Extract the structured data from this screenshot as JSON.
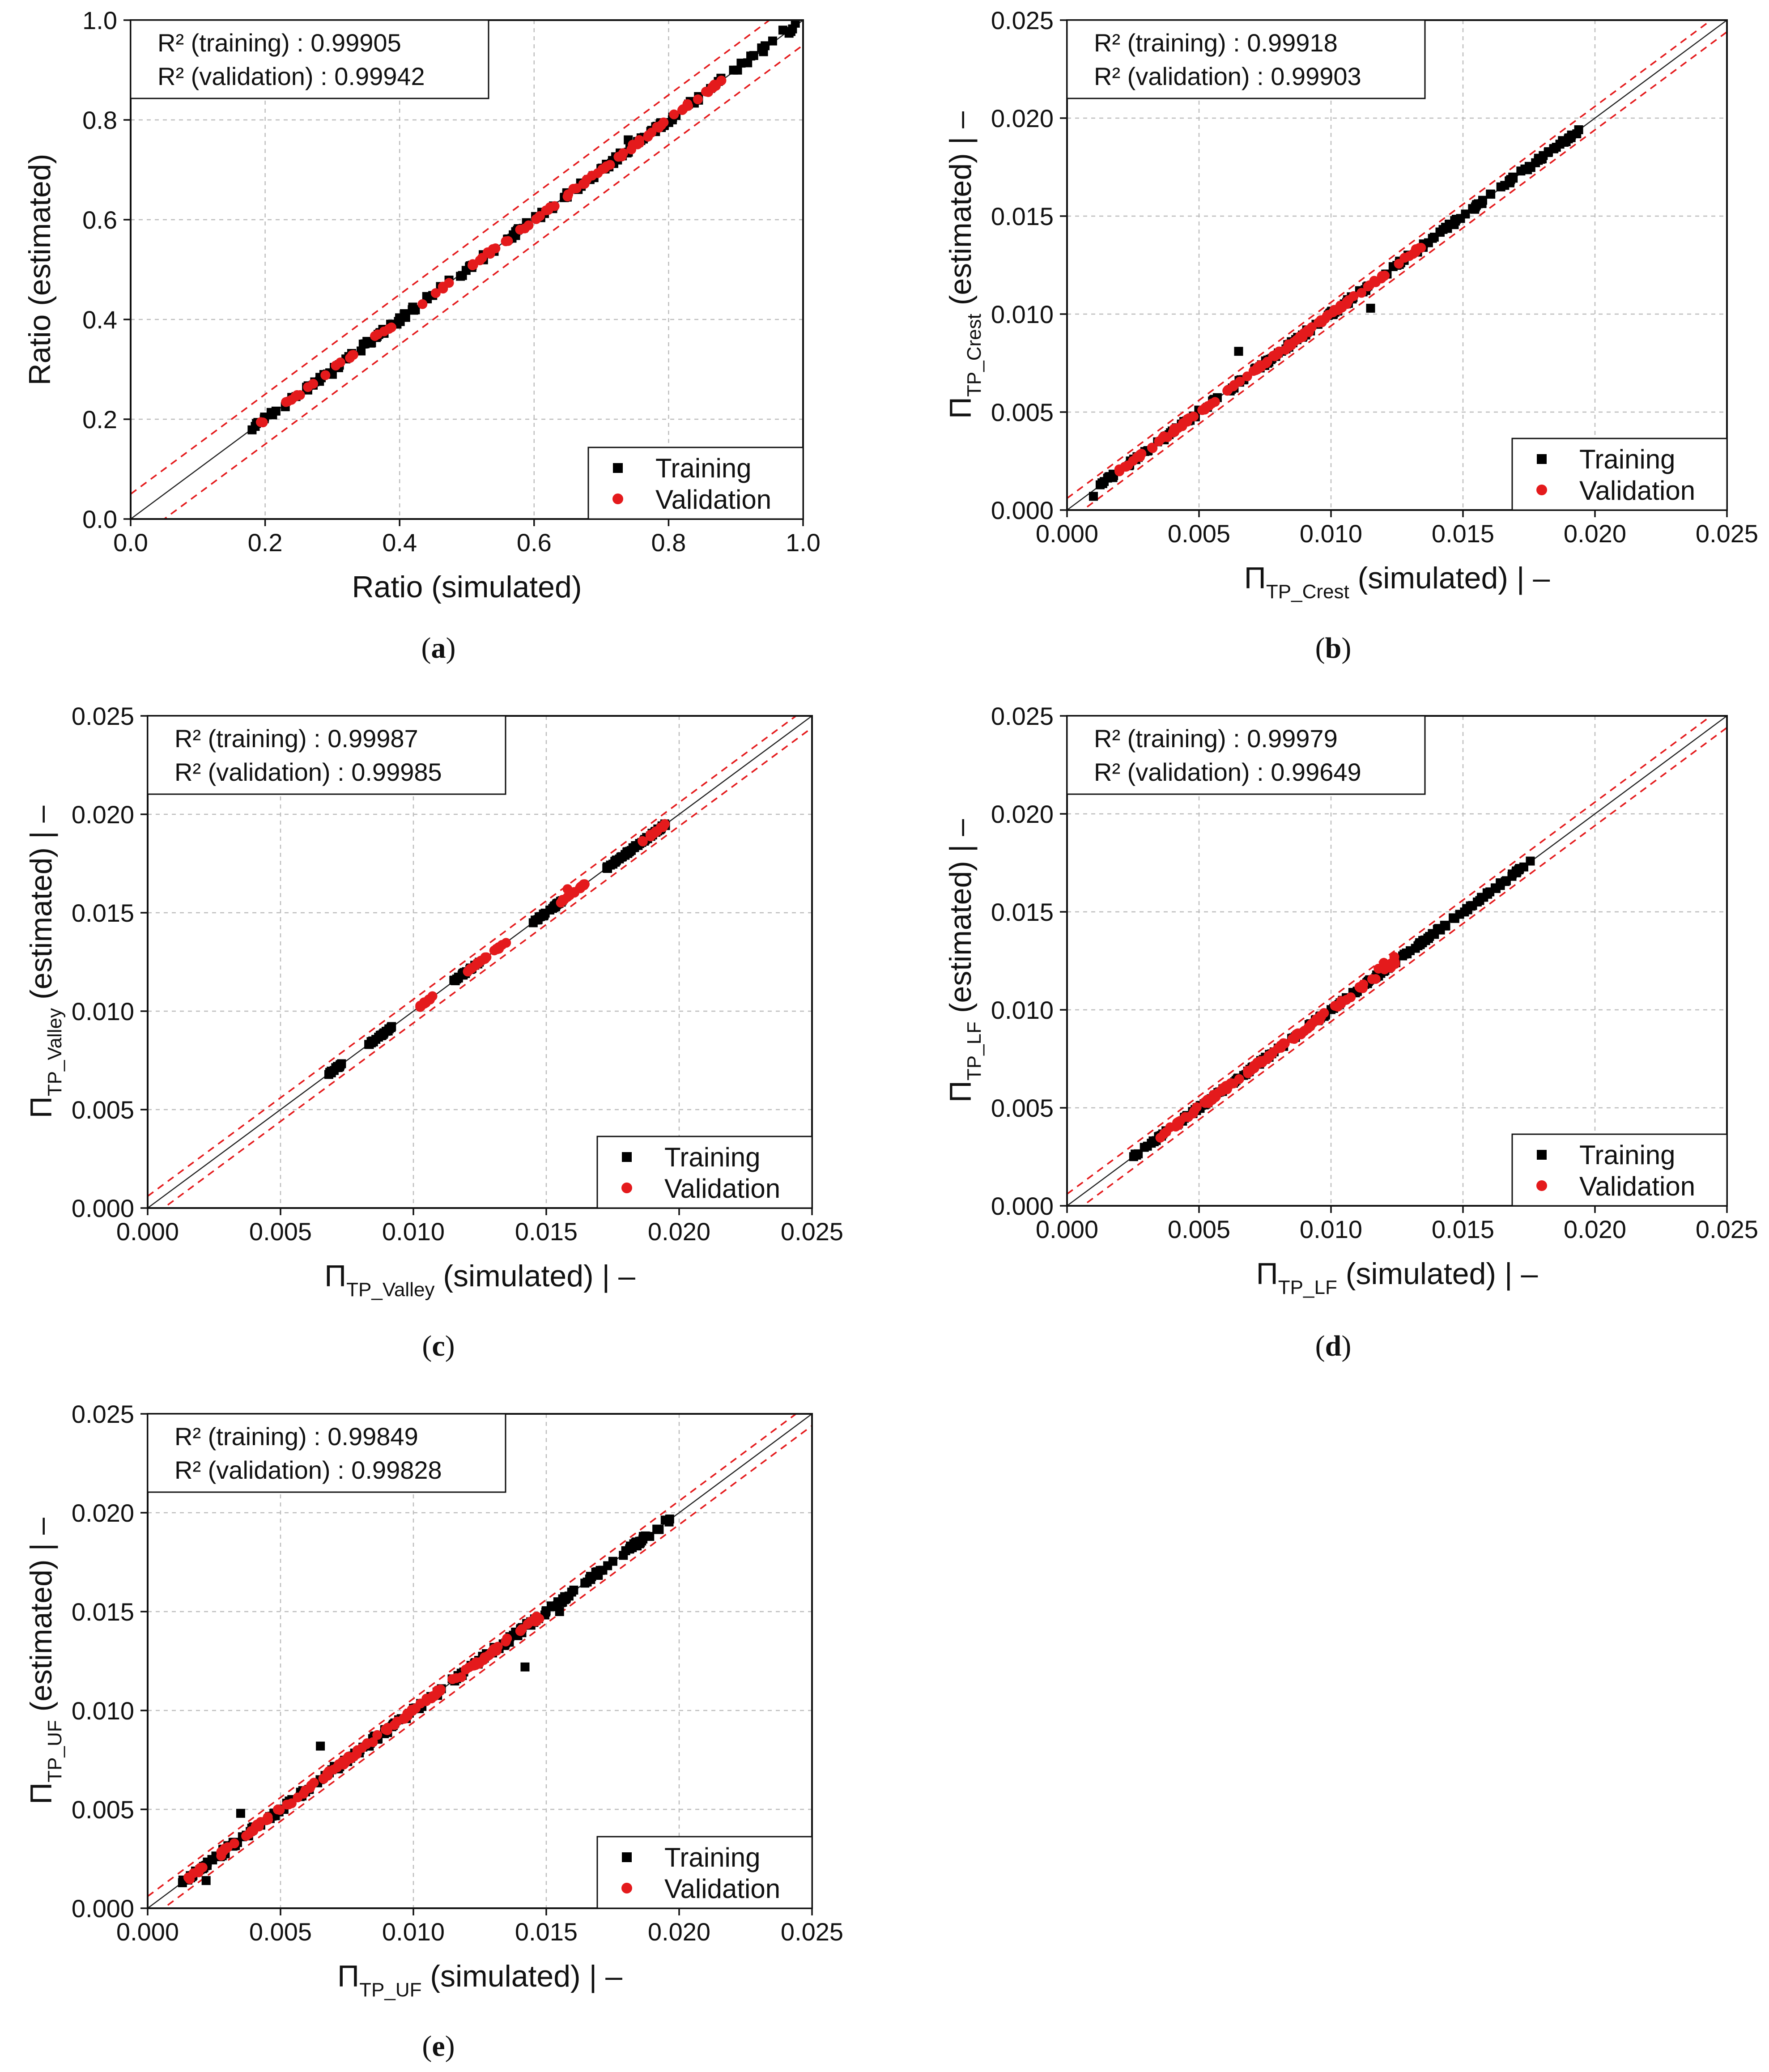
{
  "figure": {
    "legend": {
      "training_label": "Training",
      "validation_label": "Validation"
    },
    "colors": {
      "training": "#000000",
      "validation": "#e41a1c",
      "identity": "#222222",
      "band": "#e41a1c"
    }
  },
  "chart_data": [
    {
      "id": "a",
      "type": "scatter",
      "caption": {
        "open": "(",
        "letter": "a",
        "close": ")"
      },
      "xlabel": {
        "main": "Ratio (simulated)",
        "sub": "",
        "suffix": ""
      },
      "ylabel": {
        "main": "Ratio (estimated)",
        "sub": "",
        "suffix": ""
      },
      "xlim": [
        0,
        1.0
      ],
      "ylim": [
        0,
        1.0
      ],
      "xticks": [
        "0.0",
        "0.2",
        "0.4",
        "0.6",
        "0.8",
        "1.0"
      ],
      "yticks": [
        "0.0",
        "0.2",
        "0.4",
        "0.6",
        "0.8",
        "1.0"
      ],
      "stats": [
        "R² (training) : 0.99905",
        "R² (validation) : 0.99942"
      ],
      "band": 0.05,
      "series": [
        {
          "name": "Training",
          "noise": 0.006,
          "outliers": [
            [
              0.3,
              0.29
            ],
            [
              0.74,
              0.76
            ],
            [
              0.97,
              0.98
            ]
          ],
          "ranges": [
            [
              0.17,
              0.99
            ]
          ],
          "count": 170
        },
        {
          "name": "Validation",
          "noise": 0.004,
          "outliers": [],
          "ranges": [
            [
              0.19,
              0.88
            ]
          ],
          "count": 90
        }
      ]
    },
    {
      "id": "b",
      "type": "scatter",
      "caption": {
        "open": "(",
        "letter": "b",
        "close": ")"
      },
      "xlabel": {
        "main": "Π",
        "sub": "TP_Crest",
        "suffix": " (simulated) | –"
      },
      "ylabel": {
        "main": "Π",
        "sub": "TP_Crest",
        "suffix": " (estimated) | –"
      },
      "xlim": [
        0,
        0.025
      ],
      "ylim": [
        0,
        0.025
      ],
      "xticks": [
        "0.000",
        "0.005",
        "0.010",
        "0.015",
        "0.020",
        "0.025"
      ],
      "yticks": [
        "0.000",
        "0.005",
        "0.010",
        "0.015",
        "0.020",
        "0.025"
      ],
      "stats": [
        "R² (training) : 0.99918",
        "R² (validation) : 0.99903"
      ],
      "band": 0.0006,
      "series": [
        {
          "name": "Training",
          "noise": 0.00012,
          "outliers": [
            [
              0.0065,
              0.0081
            ],
            [
              0.001,
              0.0007
            ],
            [
              0.0115,
              0.0103
            ]
          ],
          "ranges": [
            [
              0.0012,
              0.0194
            ]
          ],
          "count": 200
        },
        {
          "name": "Validation",
          "noise": 0.0001,
          "outliers": [],
          "ranges": [
            [
              0.0018,
              0.0135
            ]
          ],
          "count": 110
        }
      ]
    },
    {
      "id": "c",
      "type": "scatter",
      "caption": {
        "open": "(",
        "letter": "c",
        "close": ")"
      },
      "xlabel": {
        "main": "Π",
        "sub": "TP_Valley",
        "suffix": " (simulated) | –"
      },
      "ylabel": {
        "main": "Π",
        "sub": "TP_Valley",
        "suffix": " (estimated) | –"
      },
      "xlim": [
        0,
        0.025
      ],
      "ylim": [
        0,
        0.025
      ],
      "xticks": [
        "0.000",
        "0.005",
        "0.010",
        "0.015",
        "0.020",
        "0.025"
      ],
      "yticks": [
        "0.000",
        "0.005",
        "0.010",
        "0.015",
        "0.020",
        "0.025"
      ],
      "stats": [
        "R² (training) : 0.99987",
        "R² (validation) : 0.99985"
      ],
      "band": 0.0006,
      "series": [
        {
          "name": "Training",
          "noise": 6e-05,
          "outliers": [],
          "ranges": [
            [
              0.0068,
              0.0073
            ],
            [
              0.0083,
              0.0092
            ],
            [
              0.0115,
              0.0125
            ],
            [
              0.0145,
              0.0156
            ],
            [
              0.0172,
              0.0196
            ]
          ],
          "count": 150
        },
        {
          "name": "Validation",
          "noise": 5e-05,
          "outliers": [
            [
              0.0158,
              0.0162
            ]
          ],
          "ranges": [
            [
              0.0101,
              0.0108
            ],
            [
              0.012,
              0.0135
            ],
            [
              0.0155,
              0.0165
            ],
            [
              0.0185,
              0.0195
            ]
          ],
          "count": 70
        }
      ]
    },
    {
      "id": "d",
      "type": "scatter",
      "caption": {
        "open": "(",
        "letter": "d",
        "close": ")"
      },
      "xlabel": {
        "main": "Π",
        "sub": "TP_LF",
        "suffix": " (simulated) | –"
      },
      "ylabel": {
        "main": "Π",
        "sub": "TP_LF",
        "suffix": " (estimated) | –"
      },
      "xlim": [
        0,
        0.025
      ],
      "ylim": [
        0,
        0.025
      ],
      "xticks": [
        "0.000",
        "0.005",
        "0.010",
        "0.015",
        "0.020",
        "0.025"
      ],
      "yticks": [
        "0.000",
        "0.005",
        "0.010",
        "0.015",
        "0.020",
        "0.025"
      ],
      "stats": [
        "R² (training) : 0.99979",
        "R² (validation) : 0.99649"
      ],
      "band": 0.0006,
      "series": [
        {
          "name": "Training",
          "noise": 8e-05,
          "outliers": [],
          "ranges": [
            [
              0.0025,
              0.0176
            ]
          ],
          "count": 190
        },
        {
          "name": "Validation",
          "noise": 0.00012,
          "outliers": [
            [
              0.012,
              0.0124
            ],
            [
              0.0118,
              0.0121
            ],
            [
              0.0124,
              0.0127
            ]
          ],
          "ranges": [
            [
              0.0035,
              0.0125
            ]
          ],
          "count": 110
        }
      ]
    },
    {
      "id": "e",
      "type": "scatter",
      "caption": {
        "open": "(",
        "letter": "e",
        "close": ")"
      },
      "xlabel": {
        "main": "Π",
        "sub": "TP_UF",
        "suffix": " (simulated) | –"
      },
      "ylabel": {
        "main": "Π",
        "sub": "TP_UF",
        "suffix": " (estimated) | –"
      },
      "xlim": [
        0,
        0.025
      ],
      "ylim": [
        0,
        0.025
      ],
      "xticks": [
        "0.000",
        "0.005",
        "0.010",
        "0.015",
        "0.020",
        "0.025"
      ],
      "yticks": [
        "0.000",
        "0.005",
        "0.010",
        "0.015",
        "0.020",
        "0.025"
      ],
      "stats": [
        "R² (training) : 0.99849",
        "R² (validation) : 0.99828"
      ],
      "band": 0.0006,
      "series": [
        {
          "name": "Training",
          "noise": 0.00016,
          "outliers": [
            [
              0.0035,
              0.0048
            ],
            [
              0.0065,
              0.0082
            ],
            [
              0.0142,
              0.0122
            ],
            [
              0.0022,
              0.0014
            ],
            [
              0.0155,
              0.015
            ]
          ],
          "ranges": [
            [
              0.0013,
              0.0197
            ]
          ],
          "count": 230
        },
        {
          "name": "Validation",
          "noise": 0.00012,
          "outliers": [],
          "ranges": [
            [
              0.0015,
              0.0148
            ]
          ],
          "count": 130
        }
      ]
    }
  ]
}
